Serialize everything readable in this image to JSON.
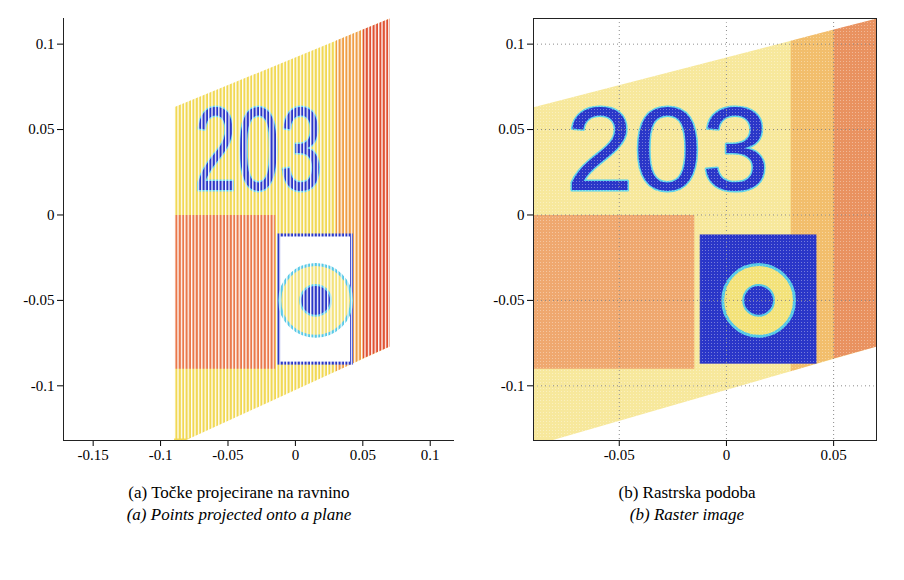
{
  "chart_data": [
    {
      "type": "scatter",
      "title": "(a) Točke projecirane na ravnino",
      "subtitle": "(a) Points projected onto a plane",
      "xlim": [
        -0.172,
        0.118
      ],
      "xticks": [
        -0.15,
        -0.1,
        -0.05,
        0,
        0.05,
        0.1
      ],
      "ylim": [
        -0.132,
        0.115
      ],
      "yticks": [
        -0.1,
        -0.05,
        0,
        0.05,
        0.1
      ],
      "grid": false,
      "regions": [
        {
          "color": "#f0d64a",
          "points": [
            [
              -0.09,
              0.063
            ],
            [
              0.07,
              0.115
            ],
            [
              0.07,
              -0.077
            ],
            [
              -0.09,
              -0.135
            ]
          ]
        },
        {
          "color": "#e9734a",
          "points": [
            [
              -0.09,
              0.0
            ],
            [
              -0.015,
              0.0
            ],
            [
              -0.015,
              -0.09
            ],
            [
              -0.09,
              -0.09
            ]
          ]
        },
        {
          "color": "#ee9a45",
          "points": [
            [
              0.03,
              0.102
            ],
            [
              0.05,
              0.1085
            ],
            [
              0.05,
              -0.084
            ],
            [
              0.03,
              -0.0915
            ]
          ]
        },
        {
          "color": "#de4a30",
          "points": [
            [
              0.05,
              0.1085
            ],
            [
              0.07,
              0.115
            ],
            [
              0.07,
              -0.077
            ],
            [
              0.05,
              -0.084
            ]
          ]
        }
      ],
      "label": {
        "text": "203",
        "x": [
          -0.075,
          0.02
        ],
        "y": [
          0.012,
          0.062
        ],
        "color": "#2a36c8"
      },
      "sign": {
        "x": [
          -0.012,
          0.042
        ],
        "y": [
          -0.087,
          -0.012
        ],
        "center": [
          0.015,
          -0.05
        ],
        "radii": [
          0.021,
          0.009
        ],
        "colors": [
          "#2a36c8",
          "#f3e27a",
          "#2a36c8"
        ]
      }
    },
    {
      "type": "image",
      "title": "(b) Rastrska podoba",
      "subtitle": "(b) Raster image",
      "xlim": [
        -0.09,
        0.07
      ],
      "xticks": [
        -0.05,
        0,
        0.05
      ],
      "ylim": [
        -0.132,
        0.115
      ],
      "yticks": [
        -0.1,
        -0.05,
        0,
        0.05,
        0.1
      ],
      "grid": true,
      "regions": [
        {
          "color": "#f0d64a",
          "points": [
            [
              -0.09,
              0.063
            ],
            [
              0.07,
              0.115
            ],
            [
              0.07,
              -0.077
            ],
            [
              -0.09,
              -0.135
            ]
          ]
        },
        {
          "color": "#e9734a",
          "points": [
            [
              -0.09,
              0.0
            ],
            [
              -0.015,
              0.0
            ],
            [
              -0.015,
              -0.09
            ],
            [
              -0.09,
              -0.09
            ]
          ]
        },
        {
          "color": "#ee9a45",
          "points": [
            [
              0.03,
              0.102
            ],
            [
              0.05,
              0.1085
            ],
            [
              0.05,
              -0.084
            ],
            [
              0.03,
              -0.0915
            ]
          ]
        },
        {
          "color": "#de4a30",
          "points": [
            [
              0.05,
              0.1085
            ],
            [
              0.07,
              0.115
            ],
            [
              0.07,
              -0.077
            ],
            [
              0.05,
              -0.084
            ]
          ]
        }
      ],
      "label": {
        "text": "203",
        "x": [
          -0.075,
          0.02
        ],
        "y": [
          0.012,
          0.062
        ],
        "color": "#2a36c8"
      },
      "sign": {
        "x": [
          -0.012,
          0.042
        ],
        "y": [
          -0.087,
          -0.012
        ],
        "center": [
          0.015,
          -0.05
        ],
        "radii": [
          0.021,
          0.009
        ],
        "colors": [
          "#2a36c8",
          "#f3e27a",
          "#2a36c8"
        ]
      }
    }
  ]
}
